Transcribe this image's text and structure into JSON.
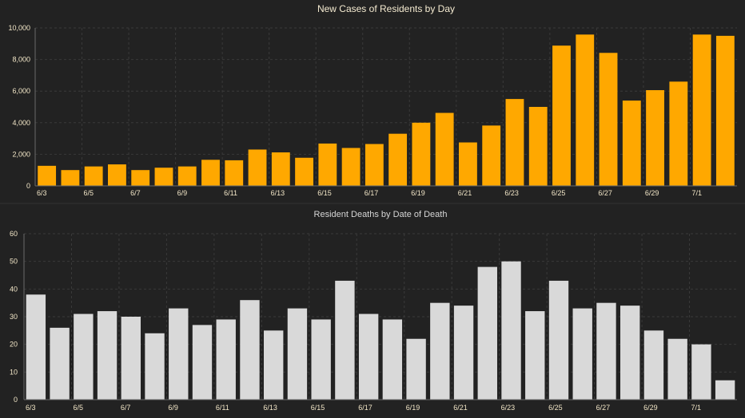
{
  "chart_data": [
    {
      "type": "bar",
      "title": "New Cases of Residents by Day",
      "xlabel": "",
      "ylabel": "",
      "ylim": [
        0,
        10000
      ],
      "yticks": [
        "0",
        "2,000",
        "4,000",
        "6,000",
        "8,000",
        "10,000"
      ],
      "ytick_values": [
        0,
        2000,
        4000,
        6000,
        8000,
        10000
      ],
      "grid": true,
      "bar_color": "#FFA800",
      "categories": [
        "6/3",
        "6/4",
        "6/5",
        "6/6",
        "6/7",
        "6/8",
        "6/9",
        "6/10",
        "6/11",
        "6/12",
        "6/13",
        "6/14",
        "6/15",
        "6/16",
        "6/17",
        "6/18",
        "6/19",
        "6/20",
        "6/21",
        "6/22",
        "6/23",
        "6/24",
        "6/25",
        "6/26",
        "6/27",
        "6/28",
        "6/29",
        "6/30",
        "7/1",
        "7/2"
      ],
      "xtick_labels": [
        "6/3",
        "6/5",
        "6/7",
        "6/9",
        "6/11",
        "6/13",
        "6/15",
        "6/17",
        "6/19",
        "6/21",
        "6/23",
        "6/25",
        "6/27",
        "6/29",
        "7/1"
      ],
      "values": [
        1270,
        1000,
        1230,
        1360,
        1000,
        1150,
        1230,
        1650,
        1620,
        2300,
        2120,
        1780,
        2680,
        2400,
        2650,
        3300,
        4000,
        4620,
        2750,
        3820,
        5500,
        5000,
        8880,
        9580,
        8420,
        5400,
        6060,
        6600,
        9580,
        9500
      ]
    },
    {
      "type": "bar",
      "title": "Resident Deaths by Date of Death",
      "xlabel": "",
      "ylabel": "",
      "ylim": [
        0,
        60
      ],
      "yticks": [
        "0",
        "10",
        "20",
        "30",
        "40",
        "50",
        "60"
      ],
      "ytick_values": [
        0,
        10,
        20,
        30,
        40,
        50,
        60
      ],
      "grid": true,
      "bar_color": "#D9D9D9",
      "categories": [
        "6/3",
        "6/4",
        "6/5",
        "6/6",
        "6/7",
        "6/8",
        "6/9",
        "6/10",
        "6/11",
        "6/12",
        "6/13",
        "6/14",
        "6/15",
        "6/16",
        "6/17",
        "6/18",
        "6/19",
        "6/20",
        "6/21",
        "6/22",
        "6/23",
        "6/24",
        "6/25",
        "6/26",
        "6/27",
        "6/28",
        "6/29",
        "6/30",
        "7/1",
        "7/2"
      ],
      "xtick_labels": [
        "6/3",
        "6/5",
        "6/7",
        "6/9",
        "6/11",
        "6/13",
        "6/15",
        "6/17",
        "6/19",
        "6/21",
        "6/23",
        "6/25",
        "6/27",
        "6/29",
        "7/1"
      ],
      "values": [
        38,
        26,
        31,
        32,
        30,
        24,
        33,
        27,
        29,
        36,
        25,
        33,
        29,
        43,
        31,
        29,
        22,
        35,
        34,
        48,
        50,
        32,
        43,
        33,
        35,
        34,
        25,
        22,
        20,
        7
      ]
    }
  ],
  "colors": {
    "background": "#222222",
    "title_cases": "#F5EBD1",
    "title_deaths": "#D6D6D6",
    "tick_text": "#F2E6C7",
    "grid": "#3A3A3A",
    "axis": "#6A6A6A"
  }
}
